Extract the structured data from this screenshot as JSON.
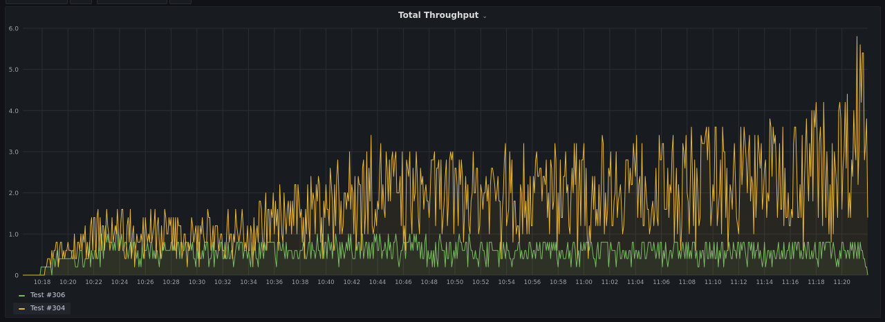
{
  "panel": {
    "title": "Total Throughput",
    "caret": "⌄"
  },
  "colors": {
    "grid": "#2c2e33",
    "tick": "#9fa1a8",
    "test306": "#73bf69",
    "test304": "#eab839"
  },
  "chart_data": {
    "type": "line",
    "title": "Total Throughput",
    "xlabel": "",
    "ylabel": "",
    "x_range": [
      "10:16:30",
      "11:22:00"
    ],
    "ylim": [
      0,
      6
    ],
    "y_ticks": [
      "0",
      "1.0",
      "2.0",
      "3.0",
      "4.0",
      "5.0",
      "6.0"
    ],
    "x_ticks": [
      "10:18",
      "10:20",
      "10:22",
      "10:24",
      "10:26",
      "10:28",
      "10:30",
      "10:32",
      "10:34",
      "10:36",
      "10:38",
      "10:40",
      "10:42",
      "10:44",
      "10:46",
      "10:48",
      "10:50",
      "10:52",
      "10:54",
      "10:56",
      "10:58",
      "11:00",
      "11:02",
      "11:04",
      "11:06",
      "11:08",
      "11:10",
      "11:12",
      "11:14",
      "11:16",
      "11:18",
      "11:20"
    ],
    "grid": true,
    "legend": "bottom-left",
    "sample_interval_seconds": 5,
    "fill": true,
    "series": [
      {
        "name": "Test #306",
        "color": "#73bf69",
        "points": [
          [
            "10:16:30",
            0
          ],
          [
            "10:17:30",
            0
          ],
          [
            "10:18:30",
            0.2
          ],
          [
            "10:19:00",
            0.4
          ],
          [
            "10:20:00",
            0.4
          ],
          [
            "10:21:00",
            0.4
          ],
          [
            "10:22:00",
            0.6
          ],
          [
            "10:23:00",
            0.8
          ],
          [
            "10:24:00",
            0.8
          ],
          [
            "10:25:00",
            0.6
          ],
          [
            "10:26:00",
            0.6
          ],
          [
            "10:28:00",
            0.6
          ],
          [
            "10:30:00",
            0.6
          ],
          [
            "10:32:00",
            0.6
          ],
          [
            "10:34:00",
            0.6
          ],
          [
            "10:36:00",
            0.6
          ],
          [
            "10:38:00",
            0.6
          ],
          [
            "10:40:00",
            0.7
          ],
          [
            "10:42:00",
            0.7
          ],
          [
            "10:44:00",
            0.7
          ],
          [
            "10:46:00",
            0.7
          ],
          [
            "10:50:00",
            0.7
          ],
          [
            "10:54:00",
            0.6
          ],
          [
            "10:58:00",
            0.6
          ],
          [
            "11:02:00",
            0.6
          ],
          [
            "11:06:00",
            0.6
          ],
          [
            "11:10:00",
            0.6
          ],
          [
            "11:14:00",
            0.6
          ],
          [
            "11:18:00",
            0.6
          ],
          [
            "11:21:30",
            0.6
          ],
          [
            "11:22:00",
            0
          ]
        ]
      },
      {
        "name": "Test #304",
        "color": "#eab839",
        "points": [
          [
            "10:16:30",
            0
          ],
          [
            "10:18:00",
            0
          ],
          [
            "10:18:30",
            0.3
          ],
          [
            "10:19:00",
            0.5
          ],
          [
            "10:20:00",
            0.6
          ],
          [
            "10:21:00",
            0.8
          ],
          [
            "10:22:00",
            1.0
          ],
          [
            "10:24:00",
            1.1
          ],
          [
            "10:26:00",
            1.1
          ],
          [
            "10:28:00",
            1.0
          ],
          [
            "10:30:00",
            1.0
          ],
          [
            "10:32:00",
            1.0
          ],
          [
            "10:34:00",
            1.1
          ],
          [
            "10:36:00",
            1.4
          ],
          [
            "10:38:00",
            1.5
          ],
          [
            "10:40:00",
            1.8
          ],
          [
            "10:42:00",
            2.0
          ],
          [
            "10:44:00",
            2.2
          ],
          [
            "10:46:00",
            2.0
          ],
          [
            "10:48:00",
            2.0
          ],
          [
            "10:50:00",
            2.0
          ],
          [
            "10:52:00",
            2.0
          ],
          [
            "10:54:00",
            2.1
          ],
          [
            "10:56:00",
            2.0
          ],
          [
            "10:58:00",
            2.1
          ],
          [
            "11:00:00",
            2.1
          ],
          [
            "11:02:00",
            2.2
          ],
          [
            "11:04:00",
            2.3
          ],
          [
            "11:06:00",
            2.2
          ],
          [
            "11:08:00",
            2.3
          ],
          [
            "11:10:00",
            2.4
          ],
          [
            "11:12:00",
            2.4
          ],
          [
            "11:14:00",
            2.5
          ],
          [
            "11:16:00",
            2.6
          ],
          [
            "11:18:00",
            2.8
          ],
          [
            "11:20:00",
            3.0
          ],
          [
            "11:21:00",
            3.2
          ],
          [
            "11:21:30",
            5.4
          ],
          [
            "11:22:00",
            2.4
          ]
        ]
      }
    ]
  },
  "legend": {
    "items": [
      {
        "label": "Test #306"
      },
      {
        "label": "Test #304"
      }
    ]
  }
}
